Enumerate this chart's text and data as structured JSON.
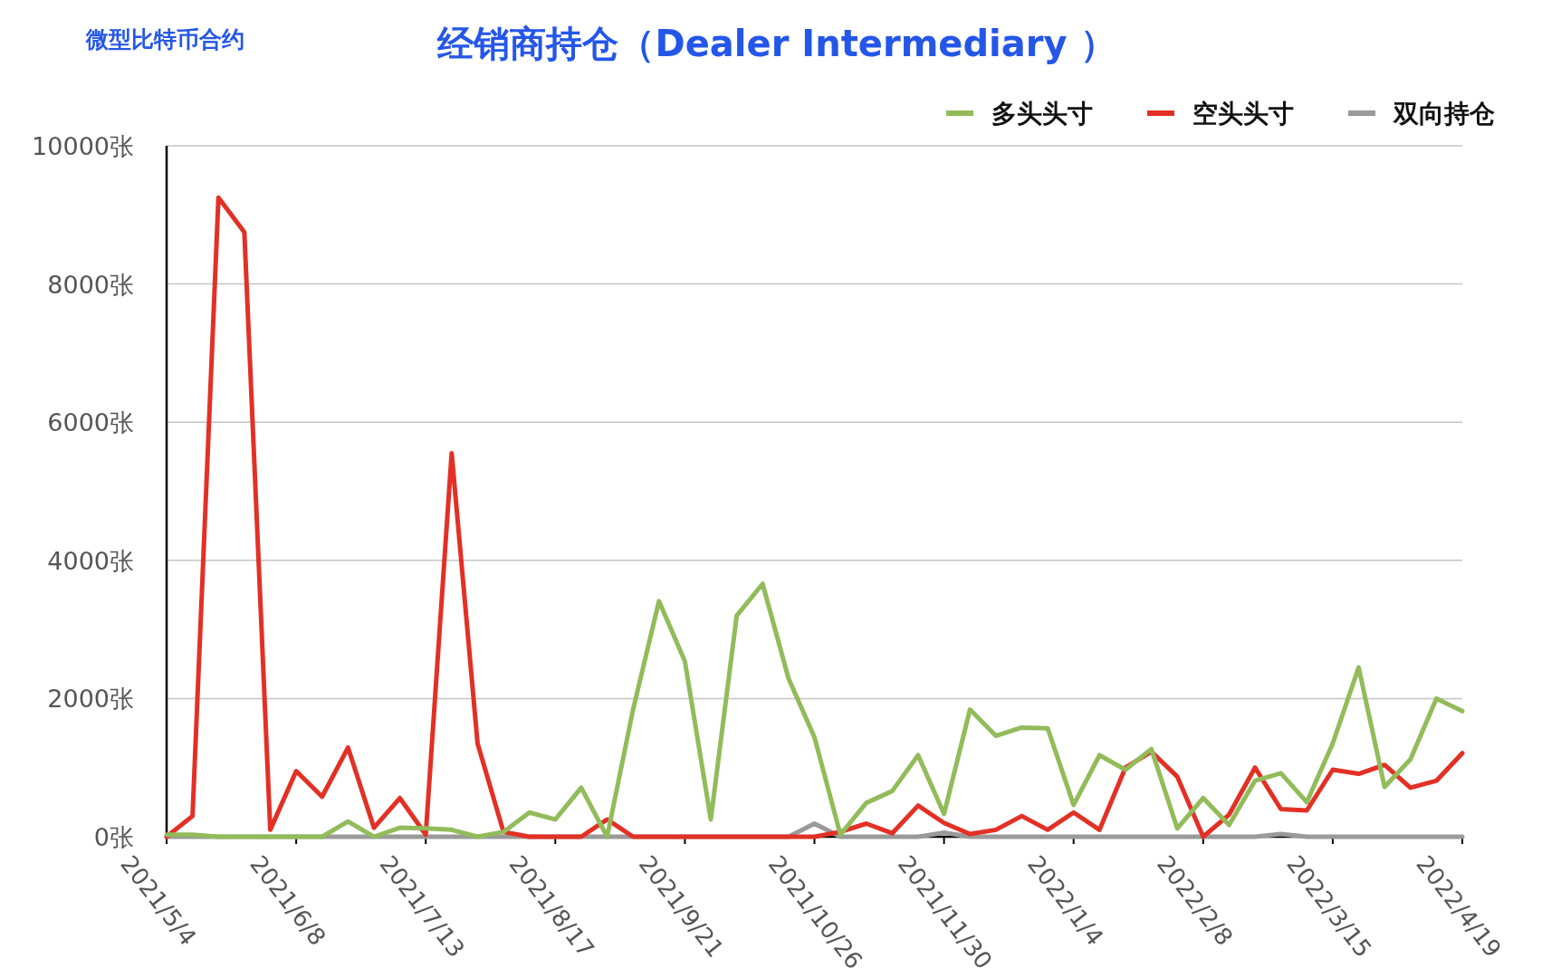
{
  "chart_data": {
    "type": "line",
    "title": "经销商持仓（Dealer Intermediary ）",
    "annotations": [
      "微型比特币合约"
    ],
    "categories": [
      "2021/5/4",
      null,
      null,
      null,
      null,
      "2021/6/8",
      null,
      null,
      null,
      null,
      "2021/7/13",
      null,
      null,
      null,
      null,
      "2021/8/17",
      null,
      null,
      null,
      null,
      "2021/9/21",
      null,
      null,
      null,
      null,
      "2021/10/26",
      null,
      null,
      null,
      null,
      "2021/11/30",
      null,
      null,
      null,
      null,
      "2022/1/4",
      null,
      null,
      null,
      null,
      "2022/2/8",
      null,
      null,
      null,
      null,
      "2022/3/15",
      null,
      null,
      null,
      null,
      "2022/4/19"
    ],
    "series": [
      {
        "name": "多头头寸",
        "color": "#92bb5a",
        "values": [
          30,
          30,
          0,
          0,
          0,
          0,
          0,
          220,
          0,
          130,
          120,
          100,
          0,
          70,
          350,
          250,
          710,
          0,
          1840,
          3410,
          2540,
          250,
          3200,
          3660,
          2290,
          1440,
          30,
          490,
          660,
          1180,
          330,
          1840,
          1460,
          1580,
          1570,
          460,
          1180,
          970,
          1270,
          120,
          560,
          170,
          810,
          920,
          500,
          1350,
          2450,
          720,
          1120,
          2000,
          1820
        ]
      },
      {
        "name": "空头头寸",
        "color": "#e33025",
        "values": [
          0,
          300,
          9250,
          8750,
          100,
          950,
          580,
          1290,
          130,
          560,
          30,
          5550,
          1350,
          70,
          0,
          0,
          0,
          250,
          0,
          0,
          0,
          0,
          0,
          0,
          0,
          0,
          70,
          190,
          50,
          450,
          200,
          40,
          100,
          300,
          100,
          350,
          100,
          1000,
          1230,
          870,
          0,
          320,
          1000,
          400,
          380,
          970,
          910,
          1040,
          710,
          810,
          1210
        ]
      },
      {
        "name": "双向持仓",
        "color": "#9a9a9a",
        "values": [
          0,
          0,
          0,
          0,
          0,
          0,
          0,
          0,
          0,
          0,
          0,
          0,
          0,
          0,
          0,
          0,
          0,
          0,
          0,
          0,
          0,
          0,
          0,
          0,
          0,
          190,
          0,
          0,
          0,
          0,
          60,
          0,
          0,
          0,
          0,
          0,
          0,
          0,
          0,
          0,
          0,
          0,
          0,
          40,
          0,
          0,
          0,
          0,
          0,
          0,
          0
        ]
      }
    ],
    "ylim": [
      0,
      10000
    ],
    "yticks": [
      {
        "value": 0,
        "label": "0张"
      },
      {
        "value": 2000,
        "label": "2000张"
      },
      {
        "value": 4000,
        "label": "4000张"
      },
      {
        "value": 6000,
        "label": "6000张"
      },
      {
        "value": 8000,
        "label": "8000张"
      },
      {
        "value": 10000,
        "label": "10000张"
      }
    ],
    "grid": "y",
    "legend": "top right"
  }
}
